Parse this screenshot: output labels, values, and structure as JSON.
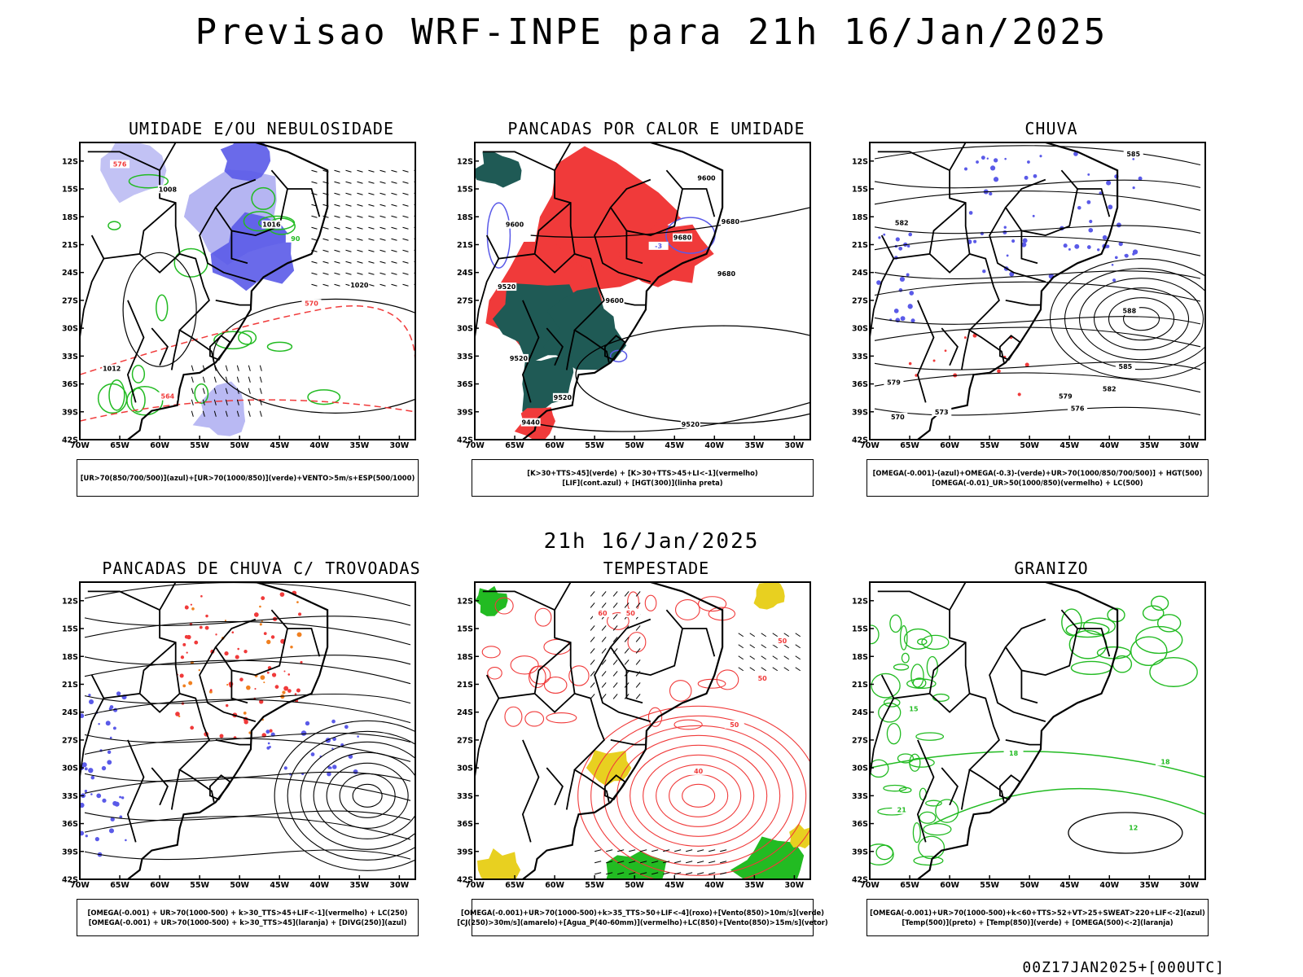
{
  "header": {
    "title": "Previsao WRF-INPE  para 21h 16/Jan/2025"
  },
  "mid_date": "21h 16/Jan/2025",
  "footer": {
    "run_stamp": "00Z17JAN2025+[000UTC]"
  },
  "axes": {
    "lat_labels": [
      "12S",
      "15S",
      "18S",
      "21S",
      "24S",
      "27S",
      "30S",
      "33S",
      "36S",
      "39S",
      "42S"
    ],
    "lon_labels": [
      "70W",
      "65W",
      "60W",
      "55W",
      "50W",
      "45W",
      "40W",
      "35W",
      "30W"
    ]
  },
  "panels": [
    {
      "title": "UMIDADE E/OU NEBULOSIDADE",
      "legend": [
        "[UR>70(850/700/500)](azul)+[UR>70(1000/850)](verde)+VENTO>5m/s+ESP(500/1000)"
      ],
      "contour_labels": [
        "1008",
        "1016",
        "1012",
        "1020",
        "576",
        "570",
        "564",
        "90"
      ]
    },
    {
      "title": "PANCADAS POR CALOR E UMIDADE",
      "legend": [
        "[K>30+TTS>45](verde) + [K>30+TTS>45+LI<-1](vermelho)",
        "[LIF](cont.azul) + [HGT(300)](linha preta)"
      ],
      "contour_labels": [
        "9600",
        "9680",
        "9520",
        "9440",
        "-3"
      ]
    },
    {
      "title": "CHUVA",
      "legend": [
        "[OMEGA(-0.001)-(azul)+OMEGA(-0.3)-(verde)+UR>70(1000/850/700/500)] + HGT(500)",
        "[OMEGA(-0.01)_UR>50(1000/850)(vermelho) + LC(500)"
      ],
      "contour_labels": [
        "585",
        "582",
        "579",
        "576",
        "573",
        "570",
        "588"
      ]
    },
    {
      "title": "PANCADAS DE CHUVA C/ TROVOADAS",
      "legend": [
        "[OMEGA(-0.001) + UR>70(1000-500) + k>30_TTS>45+LIF<-1](vermelho) + LC(250)",
        "[OMEGA(-0.001) + UR>70(1000-500) + k>30_TTS>45](laranja) + [DIVG(250)](azul)"
      ],
      "contour_labels": []
    },
    {
      "title": "TEMPESTADE",
      "legend": [
        "[OMEGA(-0.001)+UR>70(1000-500)+k>35_TTS>50+LIF<-4](roxo)+[Vento(850)>10m/s](verde)",
        "[CJ(250)>30m/s](amarelo)+[Agua_P(40-60mm)](vermelho)+LC(850)+[Vento(850)>15m/s](vetor)"
      ],
      "contour_labels": [
        "50",
        "40",
        "60"
      ]
    },
    {
      "title": "GRANIZO",
      "legend": [
        "[OMEGA(-0.001)+UR>70(1000-500)+k<60+TTS>52+VT>25+SWEAT>220+LIF<-2](azul)",
        "[Temp(500)](preto) + [Temp(850)](verde) + [OMEGA(500)<-2](laranja)"
      ],
      "contour_labels": [
        "12",
        "18",
        "15",
        "21"
      ]
    }
  ],
  "colors": {
    "blue": "#5a5ae8",
    "light_blue": "#a8a8f0",
    "green": "#22bb22",
    "red": "#f03a3a",
    "dark_teal": "#1f5a55",
    "orange": "#f08020",
    "yellow": "#e8d020"
  }
}
